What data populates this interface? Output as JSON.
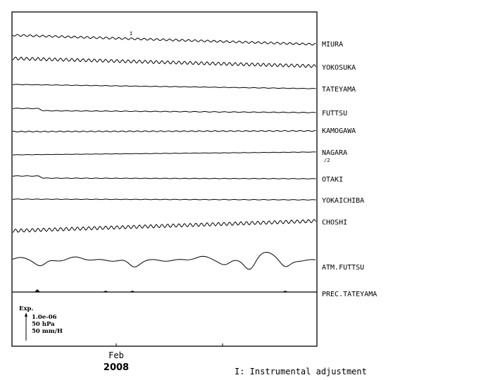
{
  "chart_data": {
    "type": "line",
    "title": "",
    "x_axis": {
      "month_label": "Feb",
      "year_label": "2008"
    },
    "series": [
      {
        "name": "MIURA",
        "label": "MIURA",
        "baseline": 50,
        "drift": 13,
        "amp": 1.4,
        "period": 9,
        "adjustments": [
          "I"
        ]
      },
      {
        "name": "YOKOSUKA",
        "label": "YOKOSUKA",
        "baseline": 83,
        "drift": 11,
        "amp": 2.2,
        "period": 8
      },
      {
        "name": "TATEYAMA",
        "label": "TATEYAMA",
        "baseline": 120,
        "drift": 6,
        "amp": 0.3,
        "period": 14
      },
      {
        "name": "FUTTSU",
        "label": "FUTTSU",
        "baseline": 154,
        "drift": 3,
        "amp": 0.4,
        "period": 14
      },
      {
        "name": "KAMOGAWA",
        "label": "KAMOGAWA",
        "baseline": 187,
        "drift": -1,
        "amp": 0.6,
        "period": 11
      },
      {
        "name": "NAGARA",
        "label": "NAGARA",
        "sublabel": "/2",
        "baseline": 220,
        "drift": -4,
        "amp": 0.2,
        "period": 14
      },
      {
        "name": "OTAKI",
        "label": "OTAKI",
        "baseline": 250,
        "drift": 1,
        "amp": 0.3,
        "period": 14
      },
      {
        "name": "YOKAICHIBA",
        "label": "YOKAICHIBA",
        "baseline": 283,
        "drift": 1,
        "amp": 0.3,
        "period": 14
      },
      {
        "name": "CHOSHI",
        "label": "CHOSHI",
        "baseline": 328,
        "drift": -14,
        "amp": 2.4,
        "period": 8
      },
      {
        "name": "ATM.FUTTSU",
        "label": "ATM.FUTTSU",
        "baseline": 370,
        "type": "pressure"
      },
      {
        "name": "PREC.TATEYAMA",
        "label": "PREC.TATEYAMA",
        "baseline": 415,
        "type": "precip"
      }
    ],
    "scale": {
      "title": "Exp.",
      "lines": [
        "1.0e-06",
        "50 hPa",
        "50 mm/H"
      ]
    },
    "note": "I: Instrumental adjustment"
  }
}
